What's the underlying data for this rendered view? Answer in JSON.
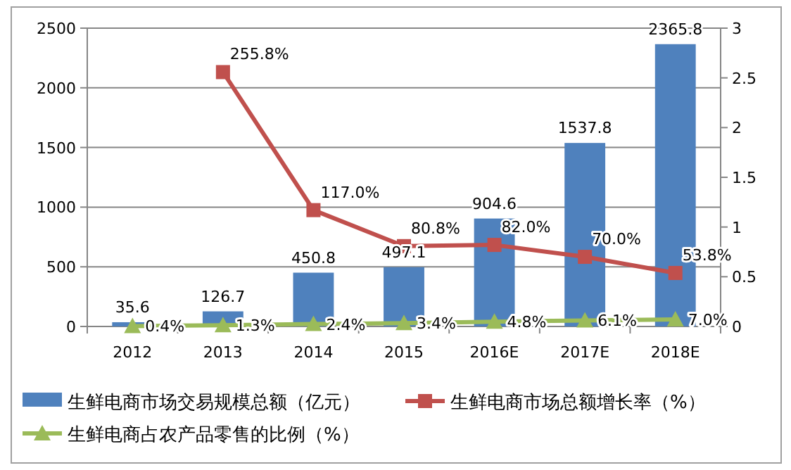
{
  "chart_data": {
    "type": "bar",
    "categories": [
      "2012",
      "2013",
      "2014",
      "2015",
      "2016E",
      "2017E",
      "2018E"
    ],
    "ylim": [
      0,
      2500
    ],
    "yticks": [
      0,
      500,
      1000,
      1500,
      2000,
      2500
    ],
    "y2lim": [
      0,
      3
    ],
    "y2ticks": [
      0,
      0.5,
      1,
      1.5,
      2,
      2.5,
      3
    ],
    "grid": "y",
    "legend": "bottom",
    "data_labels": true,
    "series": [
      {
        "name": "生鲜电商市场交易规模总额（亿元）",
        "color": "#4f81bd",
        "values": [
          35.6,
          126.7,
          450.8,
          497.1,
          904.6,
          1537.8,
          2365.8
        ]
      },
      {
        "name": "生鲜电商市场总额增长率（%）",
        "type": "line",
        "axis": "y2",
        "marker": "square",
        "color": "#c0504d",
        "values": [
          null,
          2.558,
          1.17,
          0.808,
          0.82,
          0.7,
          0.538
        ],
        "value_labels": [
          null,
          "255.8%",
          "117.0%",
          "80.8%",
          "82.0%",
          "70.0%",
          "53.8%"
        ]
      },
      {
        "name": "生鲜电商占农产品零售的比例（%）",
        "type": "line",
        "axis": "y2",
        "marker": "triangle",
        "color": "#9bbb59",
        "values": [
          0.004,
          0.013,
          0.024,
          0.034,
          0.048,
          0.061,
          0.07
        ],
        "value_labels": [
          "0.4%",
          "1.3%",
          "2.4%",
          "3.4%",
          "4.8%",
          "6.1%",
          "7.0%"
        ]
      }
    ]
  }
}
